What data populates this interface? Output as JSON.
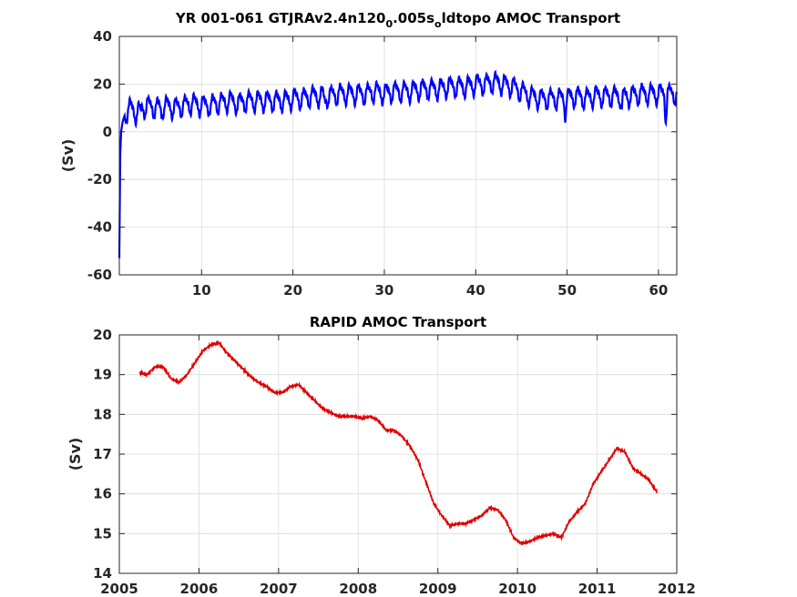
{
  "chart_data": [
    {
      "type": "line",
      "title_main": "YR 001-061 GTJRAv2.4n120",
      "title_sub1": "0",
      "title_mid": ".005s",
      "title_sub2": "o",
      "title_end": "ldtopo AMOC Transport",
      "ylabel": "(Sv)",
      "xlim": [
        1,
        62
      ],
      "ylim": [
        -60,
        40
      ],
      "xticks": [
        10,
        20,
        30,
        40,
        50,
        60
      ],
      "yticks": [
        -60,
        -40,
        -20,
        0,
        20,
        40
      ],
      "grid": true,
      "color": "#0000ff",
      "series": [
        {
          "x": [
            1,
            1.1,
            1.2,
            1.35,
            1.5,
            1.7,
            1.9,
            2.2,
            2.5,
            2.8,
            3.2,
            3.6,
            4,
            5,
            6,
            7,
            8,
            9,
            10,
            11,
            12,
            13,
            14,
            15,
            16,
            17,
            18,
            19,
            20,
            21,
            22,
            23,
            24,
            25,
            26,
            27,
            28,
            29,
            30,
            31,
            32,
            33,
            34,
            35,
            36,
            37,
            38,
            39,
            40,
            41,
            42,
            43,
            44,
            45,
            46,
            47,
            48,
            49,
            50,
            51,
            52,
            53,
            54,
            55,
            56,
            57,
            58,
            59,
            60,
            61,
            62
          ],
          "values": [
            -53,
            -10,
            0,
            4,
            6,
            8,
            9,
            10,
            9,
            8,
            9,
            10,
            11,
            10,
            11,
            10,
            11,
            12,
            11,
            12,
            12,
            13,
            12,
            13,
            13,
            13,
            13,
            13,
            14,
            14,
            15,
            15,
            15,
            16,
            16,
            16,
            16,
            17,
            16,
            17,
            17,
            17,
            18,
            18,
            18,
            19,
            19,
            19,
            20,
            20,
            21,
            20,
            19,
            17,
            15,
            14,
            14,
            14,
            14,
            15,
            14,
            15,
            15,
            15,
            15,
            15,
            16,
            16,
            16,
            16,
            16
          ],
          "amplitude": 3.5,
          "dips": [
            [
              3.3,
              1.5
            ],
            [
              5.6,
              3
            ],
            [
              11,
              3
            ],
            [
              23.5,
              3
            ],
            [
              49.8,
              5
            ],
            [
              56,
              5
            ],
            [
              60.8,
              9
            ]
          ]
        }
      ]
    },
    {
      "type": "line",
      "title": "RAPID AMOC Transport",
      "ylabel": "(Sv)",
      "xlim": [
        2005,
        2012
      ],
      "ylim": [
        14,
        20
      ],
      "xticks": [
        2005,
        2006,
        2007,
        2008,
        2009,
        2010,
        2011,
        2012
      ],
      "yticks": [
        14,
        15,
        16,
        17,
        18,
        19,
        20
      ],
      "grid": true,
      "color": "#e00000",
      "series": [
        {
          "x": [
            2005.25,
            2005.35,
            2005.45,
            2005.55,
            2005.65,
            2005.75,
            2005.85,
            2005.95,
            2006.05,
            2006.15,
            2006.25,
            2006.35,
            2006.45,
            2006.55,
            2006.65,
            2006.75,
            2006.85,
            2006.95,
            2007.05,
            2007.15,
            2007.25,
            2007.35,
            2007.45,
            2007.55,
            2007.65,
            2007.75,
            2007.85,
            2007.95,
            2008.05,
            2008.15,
            2008.25,
            2008.35,
            2008.45,
            2008.55,
            2008.65,
            2008.75,
            2008.85,
            2008.95,
            2009.05,
            2009.15,
            2009.25,
            2009.35,
            2009.45,
            2009.55,
            2009.65,
            2009.75,
            2009.85,
            2009.95,
            2010.05,
            2010.15,
            2010.25,
            2010.35,
            2010.45,
            2010.55,
            2010.65,
            2010.75,
            2010.85,
            2010.95,
            2011.05,
            2011.15,
            2011.25,
            2011.35,
            2011.45,
            2011.55,
            2011.65,
            2011.75
          ],
          "values": [
            19.05,
            19.0,
            19.2,
            19.2,
            18.9,
            18.8,
            19.0,
            19.3,
            19.6,
            19.75,
            19.8,
            19.55,
            19.35,
            19.15,
            18.95,
            18.8,
            18.7,
            18.55,
            18.55,
            18.7,
            18.75,
            18.55,
            18.35,
            18.15,
            18.05,
            17.95,
            17.95,
            17.95,
            17.9,
            17.95,
            17.85,
            17.6,
            17.6,
            17.45,
            17.2,
            16.85,
            16.3,
            15.75,
            15.45,
            15.2,
            15.25,
            15.25,
            15.35,
            15.45,
            15.65,
            15.6,
            15.35,
            14.9,
            14.75,
            14.8,
            14.9,
            14.95,
            15.0,
            14.9,
            15.3,
            15.55,
            15.75,
            16.25,
            16.55,
            16.85,
            17.15,
            17.05,
            16.65,
            16.5,
            16.35,
            16.05
          ]
        }
      ]
    }
  ]
}
